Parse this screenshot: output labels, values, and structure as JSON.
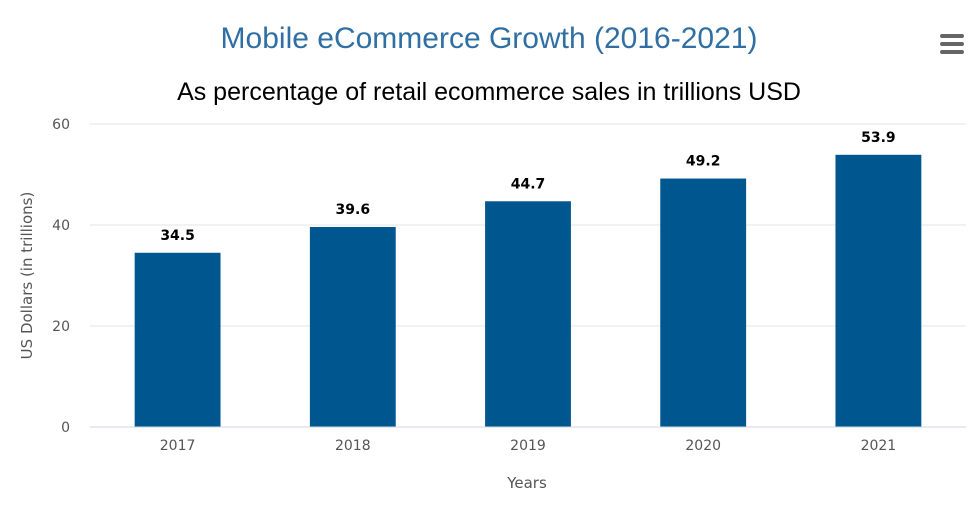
{
  "chart_data": {
    "type": "bar",
    "title": "Mobile eCommerce Growth (2016-2021)",
    "subtitle": "As percentage of retail ecommerce sales in trillions USD",
    "xlabel": "Years",
    "ylabel": "US Dollars (in trillions)",
    "categories": [
      "2017",
      "2018",
      "2019",
      "2020",
      "2021"
    ],
    "values": [
      34.5,
      39.6,
      44.7,
      49.2,
      53.9
    ],
    "data_labels": [
      "34.5",
      "39.6",
      "44.7",
      "49.2",
      "53.9"
    ],
    "ylim": [
      0,
      60
    ],
    "yticks": [
      0,
      20,
      40,
      60
    ],
    "ytick_labels": [
      "0",
      "20",
      "40",
      "60"
    ],
    "grid": true,
    "legend": "none",
    "bar_color": "#00568f"
  },
  "toolbar": {
    "menu_icon": "hamburger-menu-icon"
  }
}
